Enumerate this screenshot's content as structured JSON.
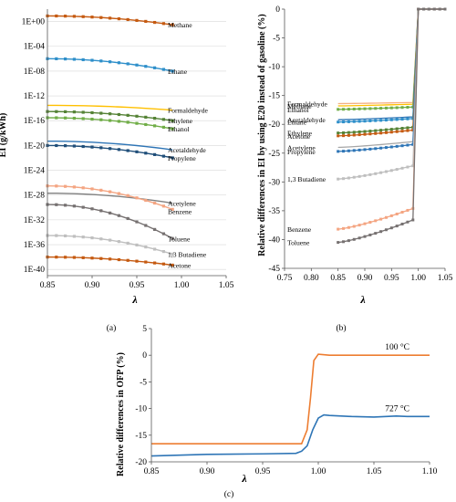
{
  "chart_data": [
    {
      "type": "line",
      "panel_label": "(a)",
      "xlabel": "λ",
      "ylabel": "EI (g/kWh)",
      "y_scale": "log",
      "xlim": [
        0.85,
        1.05
      ],
      "ylim": [
        1e-41,
        100.0
      ],
      "x_ticks": [
        "0.85",
        "0.90",
        "0.95",
        "1.00",
        "1.05"
      ],
      "y_ticks": [
        "1E+00",
        "1E-04",
        "1E-08",
        "1E-12",
        "1E-16",
        "1E-20",
        "1E-24",
        "1E-28",
        "1E-32",
        "1E-36",
        "1E-40"
      ],
      "x": [
        0.85,
        0.86,
        0.87,
        0.88,
        0.89,
        0.9,
        0.91,
        0.92,
        0.93,
        0.94,
        0.95,
        0.96,
        0.97,
        0.98,
        0.99
      ],
      "series": [
        {
          "name": "Methane",
          "color": "#c55a11",
          "marker": true,
          "y_start": 8.0,
          "y_end": 0.3,
          "curve": 2
        },
        {
          "name": "Ethane",
          "color": "#2e8fca",
          "marker": true,
          "y_start": 1e-06,
          "y_end": 1e-08,
          "curve": 2
        },
        {
          "name": "Formaldehyde",
          "color": "#ffc000",
          "marker": false,
          "y_start": 3e-14,
          "y_end": 5e-15,
          "curve": 2
        },
        {
          "name": "Ethylene",
          "color": "#548235",
          "marker": true,
          "y_start": 3e-15,
          "y_end": 1e-16,
          "curve": 2
        },
        {
          "name": "Ethanol",
          "color": "#70ad47",
          "marker": true,
          "y_start": 3e-16,
          "y_end": 5e-18,
          "curve": 2
        },
        {
          "name": "Acetaldehyde",
          "color": "#2e75b6",
          "marker": false,
          "y_start": 5e-20,
          "y_end": 2e-21,
          "curve": 2
        },
        {
          "name": "Propylene",
          "color": "#1f4e79",
          "marker": true,
          "y_start": 1e-20,
          "y_end": 1e-22,
          "curve": 2
        },
        {
          "name": "Acetylene",
          "color": "#808080",
          "marker": false,
          "y_start": 2e-28,
          "y_end": 5e-30,
          "curve": 2
        },
        {
          "name": "Benzene",
          "color": "#f4a582",
          "marker": true,
          "y_start": 3e-27,
          "y_end": 5e-31,
          "curve": 2
        },
        {
          "name": "Toluene",
          "color": "#767171",
          "marker": true,
          "y_start": 3e-30,
          "y_end": 1e-35,
          "curve": 2
        },
        {
          "name": "1,3 Butadiene",
          "color": "#bfbfbf",
          "marker": true,
          "y_start": 3e-35,
          "y_end": 3e-38,
          "curve": 2
        },
        {
          "name": "Acetone",
          "color": "#c55a11",
          "marker": true,
          "y_start": 1e-38,
          "y_end": 5e-40,
          "curve": 2
        }
      ]
    },
    {
      "type": "line",
      "panel_label": "(b)",
      "xlabel": "λ",
      "ylabel": "Relative differences in EI by using E20 instead of gasoline (%)",
      "xlim": [
        0.75,
        1.05
      ],
      "ylim": [
        -45,
        0
      ],
      "x_ticks": [
        "0.75",
        "0.80",
        "0.85",
        "0.90",
        "0.95",
        "1.00",
        "1.05"
      ],
      "y_ticks": [
        "0",
        "-5",
        "-10",
        "-15",
        "-20",
        "-25",
        "-30",
        "-35",
        "-40",
        "-45"
      ],
      "x": [
        0.85,
        0.86,
        0.87,
        0.88,
        0.89,
        0.9,
        0.91,
        0.92,
        0.93,
        0.94,
        0.95,
        0.96,
        0.97,
        0.98,
        0.99,
        1.0,
        1.01,
        1.02,
        1.03,
        1.04,
        1.05
      ],
      "jump_x": 0.99,
      "series": [
        {
          "name": "Methane",
          "color": "#ffc000",
          "marker": false,
          "y_start": -16.8,
          "y_end": -16.5
        },
        {
          "name": "Formaldehyde",
          "color": "#f4b183",
          "marker": false,
          "y_start": -16.4,
          "y_end": -16.2
        },
        {
          "name": "Ethanol",
          "color": "#70ad47",
          "marker": true,
          "y_start": -17.4,
          "y_end": -17.0
        },
        {
          "name": "Acetaldehyde",
          "color": "#2e75b6",
          "marker": false,
          "y_start": -19.2,
          "y_end": -18.7
        },
        {
          "name": "Ethane",
          "color": "#2e8fca",
          "marker": true,
          "y_start": -19.6,
          "y_end": -19.0
        },
        {
          "name": "Ethylene",
          "color": "#548235",
          "marker": true,
          "y_start": -21.5,
          "y_end": -20.5
        },
        {
          "name": "Acetone",
          "color": "#c55a11",
          "marker": true,
          "y_start": -22.0,
          "y_end": -21.0
        },
        {
          "name": "Acetylene",
          "color": "#a6a6a6",
          "marker": false,
          "y_start": -24.0,
          "y_end": -23.0
        },
        {
          "name": "Propylene",
          "color": "#2e75b6",
          "marker": true,
          "y_start": -24.7,
          "y_end": -23.5
        },
        {
          "name": "1,3 Butadiene",
          "color": "#bfbfbf",
          "marker": true,
          "y_start": -29.5,
          "y_end": -27.2
        },
        {
          "name": "Benzene",
          "color": "#f4a582",
          "marker": true,
          "y_start": -38.2,
          "y_end": -34.6
        },
        {
          "name": "Toluene",
          "color": "#767171",
          "marker": true,
          "y_start": -40.5,
          "y_end": -36.6
        }
      ]
    },
    {
      "type": "line",
      "panel_label": "(c)",
      "xlabel": "λ",
      "ylabel": "Relative differences in OFP (%)",
      "xlim": [
        0.85,
        1.1
      ],
      "ylim": [
        -20,
        5
      ],
      "x_ticks": [
        "0.85",
        "0.90",
        "0.95",
        "1.00",
        "1.05",
        "1.10"
      ],
      "y_ticks": [
        "5",
        "0",
        "-5",
        "-10",
        "-15",
        "-20"
      ],
      "series": [
        {
          "name": "100 °C",
          "color": "#ed7d31",
          "x": [
            0.85,
            0.9,
            0.95,
            0.975,
            0.985,
            0.99,
            0.993,
            0.996,
            1.0,
            1.01,
            1.05,
            1.1
          ],
          "y": [
            -16.6,
            -16.6,
            -16.6,
            -16.6,
            -16.6,
            -14.0,
            -8.0,
            -1.0,
            0.2,
            0.0,
            0.0,
            0.0
          ]
        },
        {
          "name": "727 °C",
          "color": "#2e75b6",
          "x": [
            0.85,
            0.9,
            0.95,
            0.98,
            0.985,
            0.99,
            0.995,
            1.0,
            1.005,
            1.01,
            1.03,
            1.05,
            1.07,
            1.08,
            1.1
          ],
          "y": [
            -18.9,
            -18.6,
            -18.5,
            -18.4,
            -18.0,
            -17.0,
            -14.0,
            -11.8,
            -11.2,
            -11.3,
            -11.5,
            -11.6,
            -11.4,
            -11.5,
            -11.5
          ]
        }
      ]
    }
  ]
}
